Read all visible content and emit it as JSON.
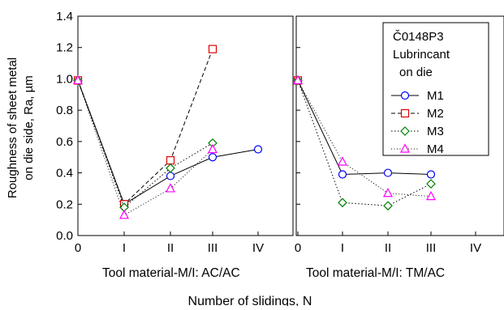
{
  "chart_data": [
    {
      "type": "line",
      "panel": "left",
      "xlabel": "Tool material-M/I: AC/AC",
      "ylabel_lines": [
        "Roughness of sheet metal",
        "on die side, Ra, µm"
      ],
      "categories": [
        "0",
        "I",
        "II",
        "III",
        "IV"
      ],
      "ylim": [
        0.0,
        1.4
      ],
      "yticks": [
        "0.0",
        "0.2",
        "0.4",
        "0.6",
        "0.8",
        "1.0",
        "1.2",
        "1.4"
      ],
      "series": [
        {
          "name": "M1",
          "values": [
            0.99,
            0.2,
            0.38,
            0.5,
            0.55
          ]
        },
        {
          "name": "M2",
          "values": [
            0.99,
            0.2,
            0.48,
            1.19,
            null
          ]
        },
        {
          "name": "M3",
          "values": [
            0.99,
            0.18,
            0.43,
            0.59,
            null
          ]
        },
        {
          "name": "M4",
          "values": [
            0.99,
            0.13,
            0.3,
            0.55,
            null
          ]
        }
      ]
    },
    {
      "type": "line",
      "panel": "right",
      "xlabel": "Tool material-M/I: TM/AC",
      "categories": [
        "0",
        "I",
        "II",
        "III",
        "IV"
      ],
      "ylim": [
        0.0,
        1.4
      ],
      "series": [
        {
          "name": "M1",
          "values": [
            0.99,
            0.39,
            0.4,
            0.39,
            null
          ]
        },
        {
          "name": "M2",
          "values": [
            0.99,
            null,
            null,
            null,
            null
          ]
        },
        {
          "name": "M3",
          "values": [
            0.99,
            0.21,
            0.19,
            0.33,
            null
          ]
        },
        {
          "name": "M4",
          "values": [
            0.99,
            0.47,
            0.27,
            0.25,
            null
          ]
        }
      ],
      "legend": {
        "title_lines": [
          "Č0148P3",
          "Lubrincant",
          "on die"
        ],
        "entries": [
          "M1",
          "M2",
          "M3",
          "M4"
        ],
        "placement": "top-right"
      }
    }
  ],
  "shared_xlabel": "Number of slidings, N",
  "series_styles": {
    "M1": {
      "color": "#0000ff",
      "marker": "circle",
      "dash": "solid"
    },
    "M2": {
      "color": "#dd0000",
      "marker": "square",
      "dash": "dashed"
    },
    "M3": {
      "color": "#008000",
      "marker": "diamond",
      "dash": "dash-dot"
    },
    "M4": {
      "color": "#ff00ff",
      "marker": "triangle",
      "dash": "dotted"
    }
  }
}
